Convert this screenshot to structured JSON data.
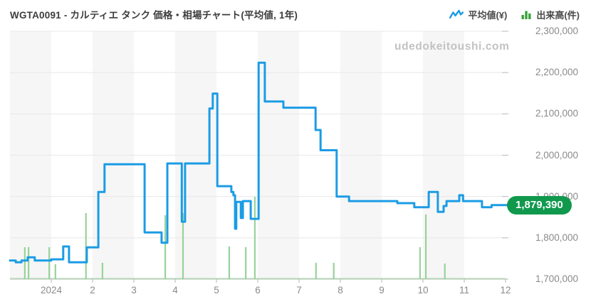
{
  "header": {
    "title": "WGTA0091 - カルティエ タンク 価格・相場チャート(平均値, 1年)",
    "legend": [
      {
        "label": "平均値(¥)",
        "icon": "line-zigzag-icon",
        "color": "#1b9ce5"
      },
      {
        "label": "出来高(件)",
        "icon": "bar-chart-icon",
        "color": "#3aa13a"
      }
    ]
  },
  "watermark": "udedokeitoushi.com",
  "badge": {
    "text": "1,879,390",
    "color": "#10994d"
  },
  "chart_data": {
    "type": "line",
    "subtype": "step-after price line with volume bars",
    "title": "WGTA0091 カルティエ タンク 価格・相場チャート (平均値, 1年)",
    "x_axis": {
      "labels": [
        "2024",
        "2",
        "3",
        "4",
        "5",
        "6",
        "7",
        "8",
        "9",
        "10",
        "11",
        "12"
      ],
      "note": "ticks mark month starts; x unit below is months since chart start (Dec 2023), 12 months shown",
      "stripes": "alternating monthly background bands"
    },
    "y_axis": {
      "tick_labels": [
        "2,300,000",
        "2,200,000",
        "2,100,000",
        "2,000,000",
        "1,900,000",
        "1,800,000",
        "1,700,000"
      ],
      "min": 1700000,
      "max": 2300000,
      "step": 100000,
      "unit": "yen",
      "position": "right",
      "grid": true
    },
    "series": [
      {
        "name": "平均値(¥)",
        "type": "step-line",
        "color": "#1b9ce5",
        "final_value": 1879390,
        "points": [
          [
            0.0,
            1745000
          ],
          [
            0.14,
            1741000
          ],
          [
            0.28,
            1745000
          ],
          [
            0.43,
            1753000
          ],
          [
            0.6,
            1745000
          ],
          [
            1.0,
            1748000
          ],
          [
            1.29,
            1779000
          ],
          [
            1.43,
            1741000
          ],
          [
            1.86,
            1777000
          ],
          [
            2.14,
            1911000
          ],
          [
            2.29,
            1978000
          ],
          [
            3.26,
            1813000
          ],
          [
            3.67,
            1788000
          ],
          [
            3.81,
            1980000
          ],
          [
            4.16,
            1839000
          ],
          [
            4.24,
            1980000
          ],
          [
            4.83,
            2113000
          ],
          [
            4.91,
            2149000
          ],
          [
            5.02,
            1925000
          ],
          [
            5.36,
            1911000
          ],
          [
            5.41,
            1903000
          ],
          [
            5.45,
            1822000
          ],
          [
            5.48,
            1887000
          ],
          [
            5.59,
            1848000
          ],
          [
            5.64,
            1889000
          ],
          [
            5.83,
            1846000
          ],
          [
            6.02,
            2224000
          ],
          [
            6.17,
            2130000
          ],
          [
            6.62,
            2115000
          ],
          [
            7.4,
            2061000
          ],
          [
            7.52,
            2012000
          ],
          [
            7.91,
            1900000
          ],
          [
            8.21,
            1889000
          ],
          [
            9.38,
            1884000
          ],
          [
            9.79,
            1874000
          ],
          [
            10.14,
            1911000
          ],
          [
            10.36,
            1863000
          ],
          [
            10.5,
            1877000
          ],
          [
            10.57,
            1889000
          ],
          [
            10.88,
            1903000
          ],
          [
            10.97,
            1889000
          ],
          [
            11.43,
            1874000
          ],
          [
            11.66,
            1879390
          ]
        ]
      },
      {
        "name": "出来高(件)",
        "type": "bars",
        "color": "#98d39a",
        "units": "relative bar height in px (no numeric scale shown on chart)",
        "bars": [
          [
            0.36,
            45
          ],
          [
            0.45,
            45
          ],
          [
            0.95,
            45
          ],
          [
            1.1,
            21
          ],
          [
            1.84,
            93
          ],
          [
            2.24,
            23
          ],
          [
            3.76,
            90
          ],
          [
            4.19,
            93
          ],
          [
            5.31,
            46
          ],
          [
            5.71,
            45
          ],
          [
            5.93,
            116
          ],
          [
            7.41,
            23
          ],
          [
            7.84,
            23
          ],
          [
            9.93,
            45
          ],
          [
            10.07,
            91
          ],
          [
            10.53,
            22
          ]
        ],
        "baseline_strip": true
      }
    ]
  },
  "colors": {
    "line_blue": "#1b9ce5",
    "volume_green": "#98d39a",
    "badge_green": "#10994d",
    "stripe_gray": "#f6f6f6",
    "gridline": "#e8e8e8",
    "axis_text": "#8a8a8a",
    "title_text": "#3d3d3d",
    "watermark_text": "#c2c2c2"
  }
}
